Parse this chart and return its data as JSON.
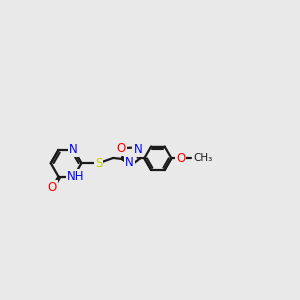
{
  "bg_color": "#e9e9e9",
  "bond_color": "#1a1a1a",
  "bond_width": 1.6,
  "atom_colors": {
    "N": "#0000ff",
    "O": "#ff0000",
    "S": "#cccc00",
    "C": "#1a1a1a"
  },
  "figsize": [
    3.0,
    3.0
  ],
  "dpi": 100,
  "xlim": [
    0.0,
    10.0
  ],
  "ylim": [
    2.5,
    8.5
  ]
}
